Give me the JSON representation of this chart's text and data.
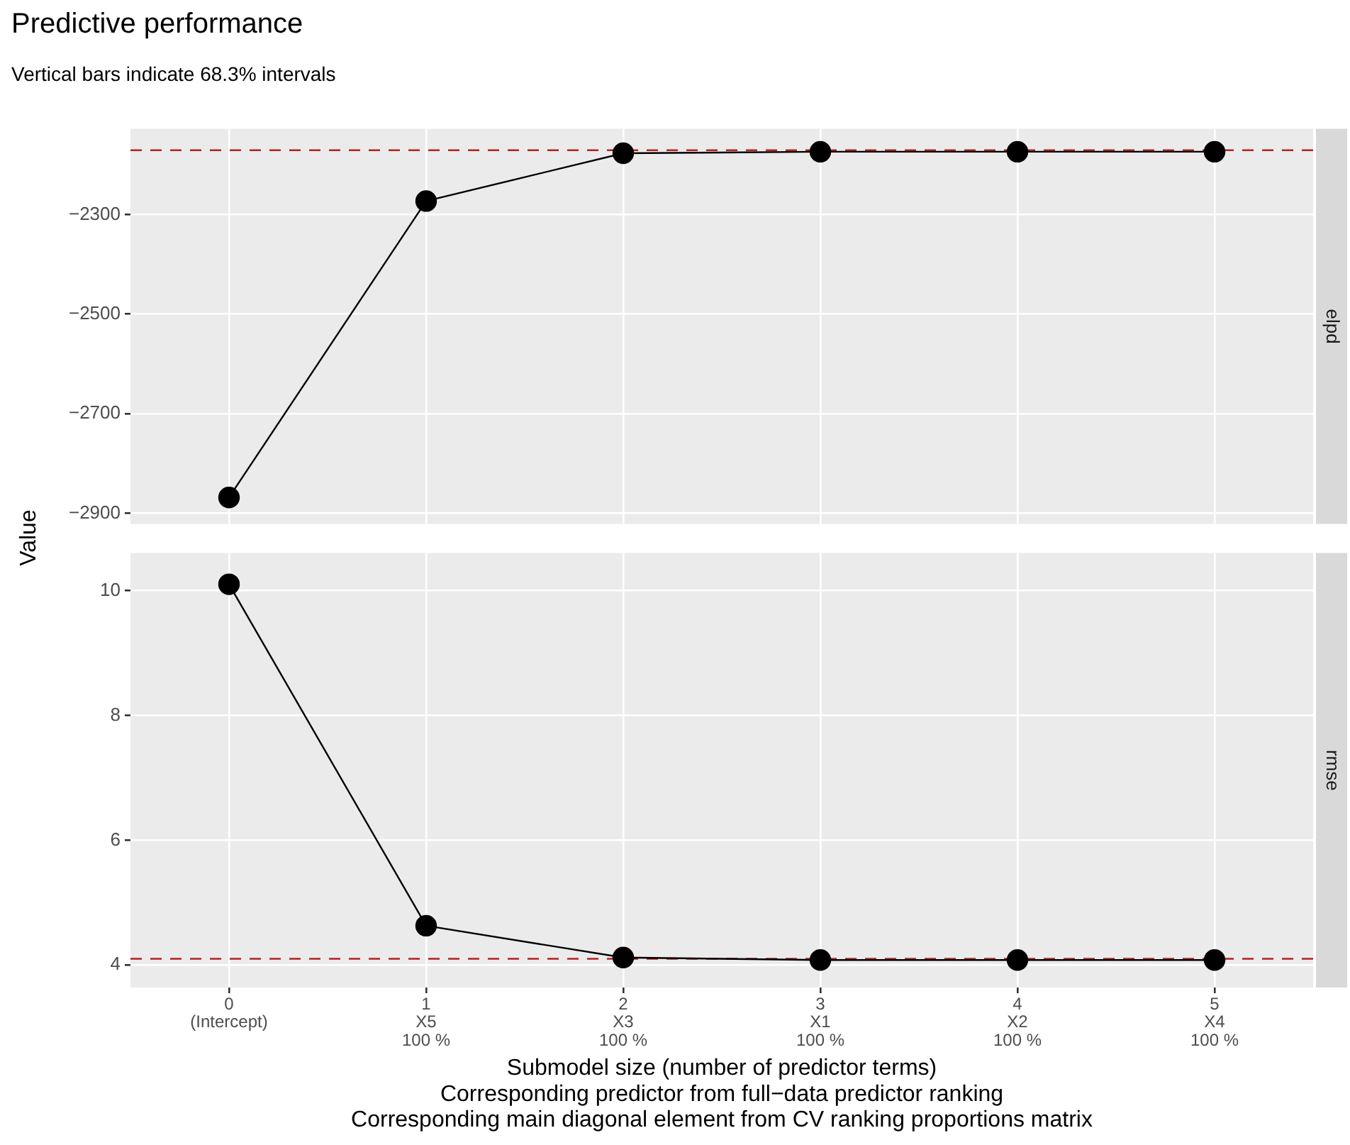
{
  "chart_data": [
    {
      "type": "line",
      "title": "Predictive performance",
      "subtitle": "Vertical bars indicate 68.3% intervals",
      "ylabel": "Value",
      "annotations": [
        "elpd"
      ],
      "categories": [
        null,
        null,
        null,
        null,
        null,
        null
      ],
      "series": [
        {
          "color": "#000000",
          "values": [
            -2868,
            -2273,
            -2177,
            -2174,
            -2174,
            -2174
          ]
        }
      ],
      "ylim": [
        -2921,
        -2128
      ],
      "yticks": [
        -2300,
        -2500,
        -2700,
        -2900
      ],
      "ref_lines": [
        {
          "axis": "y",
          "value": -2171,
          "color": "#b22222",
          "line_style": "dashed"
        }
      ],
      "grid": true,
      "legend": false,
      "marker": "circle",
      "line_style": "solid",
      "tick_labels": "y"
    },
    {
      "type": "line",
      "annotations": [
        "rmse"
      ],
      "xlabel": "Submodel size (number of predictor terms)\nCorresponding predictor from full−data predictor ranking\nCorresponding main diagonal element from CV ranking proportions matrix",
      "categories": [
        "0\n(Intercept)",
        "1\nX5\n100 %",
        "2\nX3\n100 %",
        "3\nX1\n100 %",
        "4\nX2\n100 %",
        "5\nX4\n100 %"
      ],
      "series": [
        {
          "color": "#000000",
          "values": [
            10.1,
            4.63,
            4.12,
            4.08,
            4.08,
            4.08
          ]
        }
      ],
      "ylim": [
        3.64,
        10.6
      ],
      "yticks": [
        4,
        6,
        8,
        10
      ],
      "ref_lines": [
        {
          "axis": "y",
          "value": 4.1,
          "color": "#b22222",
          "line_style": "dashed"
        }
      ],
      "grid": true,
      "legend": false,
      "marker": "circle",
      "line_style": "solid"
    }
  ]
}
